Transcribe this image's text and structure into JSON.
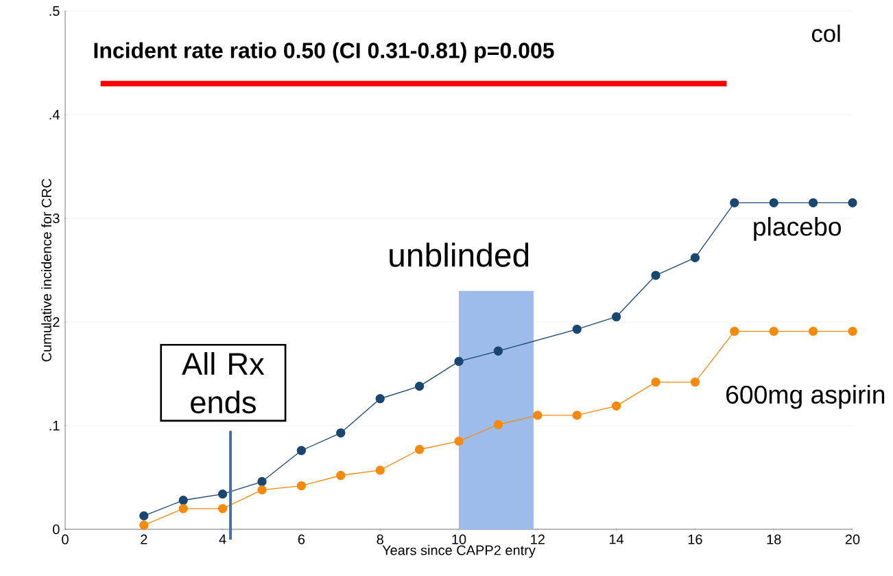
{
  "chart_data": {
    "type": "line",
    "title": "Incident rate ratio 0.50 (CI 0.31-0.81) p=0.005",
    "xlabel": "Years since CAPP2 entry",
    "ylabel": "Cumulative incidence for CRC",
    "series": [
      {
        "name": "placebo",
        "color": "#1a476f",
        "x": [
          2,
          3,
          4,
          5,
          6,
          7,
          8,
          9,
          10,
          11,
          13,
          14,
          15,
          16,
          17,
          18,
          19,
          20
        ],
        "values": [
          0.013,
          0.028,
          0.034,
          0.046,
          0.076,
          0.093,
          0.126,
          0.138,
          0.162,
          0.172,
          0.193,
          0.205,
          0.245,
          0.262,
          0.315,
          0.315,
          0.315,
          0.315
        ]
      },
      {
        "type": "line",
        "color": "#ff0000",
        "marker": "none",
        "x": [
          0.9,
          16.8
        ],
        "values": [
          0.43,
          0.43
        ]
      },
      {
        "name": "600mg aspirin",
        "color": "#f58a0d",
        "x": [
          2,
          3,
          4,
          5,
          6,
          7,
          8,
          9,
          10,
          11,
          12,
          13,
          14,
          15,
          16,
          17,
          18,
          19,
          20
        ],
        "values": [
          0.004,
          0.02,
          0.02,
          0.038,
          0.042,
          0.052,
          0.057,
          0.077,
          0.085,
          0.101,
          0.11,
          0.11,
          0.119,
          0.142,
          0.142,
          0.191,
          0.191,
          0.191,
          0.191
        ]
      }
    ],
    "xlim": [
      0,
      20
    ],
    "ylim": [
      0,
      0.5
    ],
    "xticks": [
      0,
      2,
      4,
      6,
      8,
      10,
      12,
      14,
      16,
      18,
      20
    ],
    "yticks": [
      {
        "value": 0,
        "label": "0"
      },
      {
        "value": 0.1,
        "label": ".1"
      },
      {
        "value": 0.2,
        "label": ".2"
      },
      {
        "value": 0.3,
        "label": ".3"
      },
      {
        "value": 0.4,
        "label": ".4"
      },
      {
        "value": 0.5,
        "label": ".5"
      }
    ],
    "ref_lines": [
      {
        "axis": "x",
        "value": 4.2,
        "label": "All Rx ends",
        "color": "#4a6fa5"
      }
    ],
    "bands": [
      {
        "axis": "x",
        "from": 10,
        "to": 11.9,
        "label": "unblinded",
        "color": "#9dbcec"
      }
    ],
    "annotations": [
      "col"
    ],
    "grid": "y",
    "marker": "circle",
    "line_style": "solid"
  }
}
